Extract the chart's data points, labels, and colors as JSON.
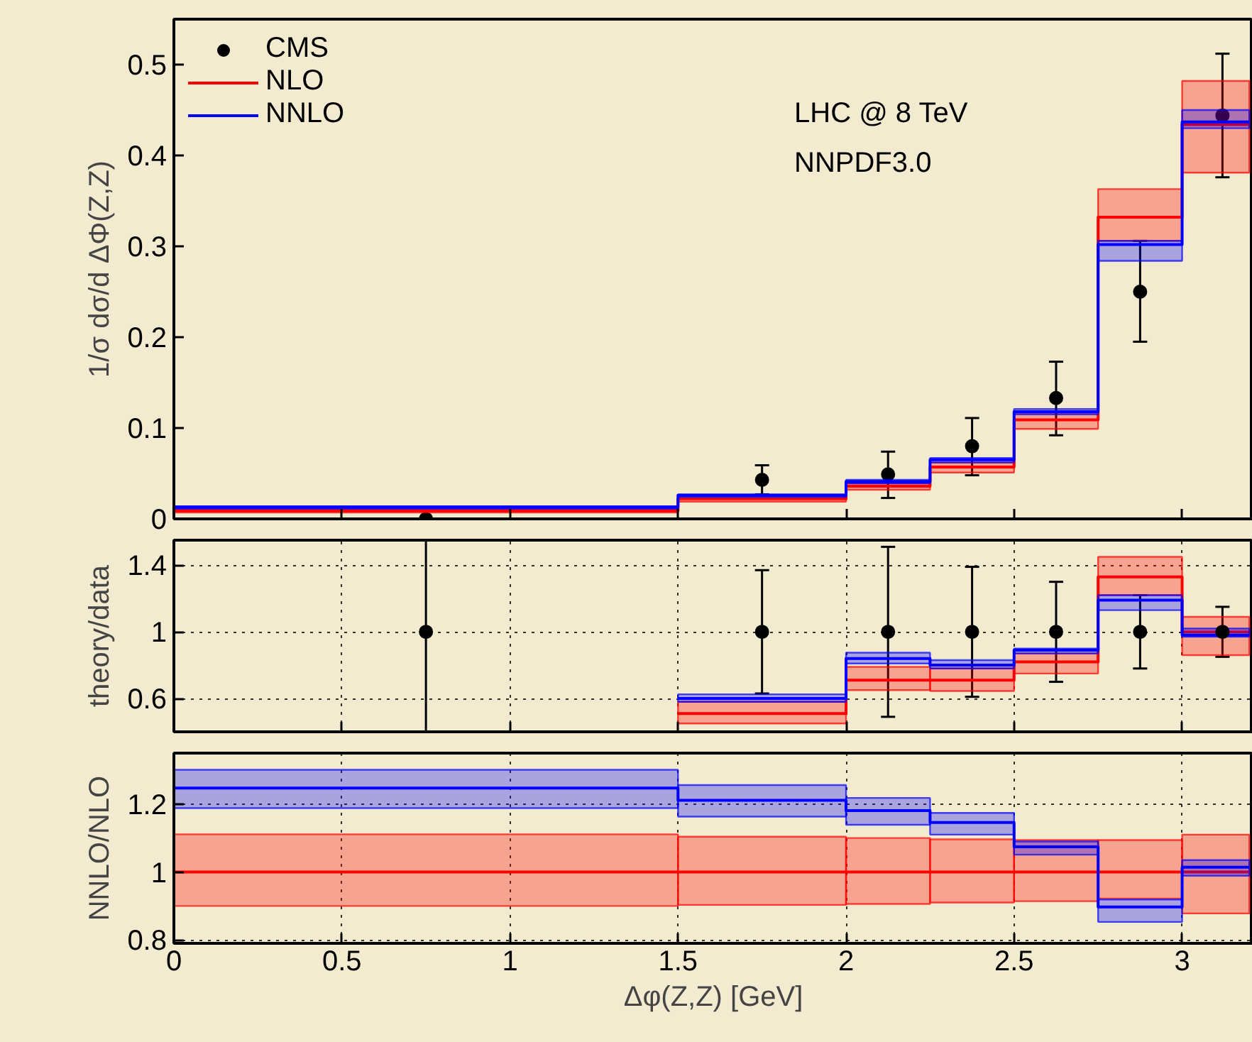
{
  "chart_data": [
    {
      "type": "step",
      "ylabel": "1/σ dσ/d ΔΦ(Z,Z)",
      "xlim": [
        0,
        3.21
      ],
      "ylim": [
        0,
        0.55
      ],
      "xticks": [
        0,
        0.5,
        1,
        1.5,
        2,
        2.5,
        3
      ],
      "yticks": [
        0,
        0.1,
        0.2,
        0.3,
        0.4,
        0.5
      ],
      "tick_labels": "y",
      "grid": false,
      "legend": "top left",
      "annotations": [
        "LHC @ 8 TeV",
        "NNPDF3.0"
      ],
      "series": [
        {
          "name": "CMS",
          "type": "scatter",
          "marker": "circle",
          "color": "#000000",
          "x": [
            0.75,
            1.75,
            2.125,
            2.375,
            2.625,
            2.875,
            3.12
          ],
          "values": [
            0,
            0.043,
            0.049,
            0.08,
            0.133,
            0.25,
            0.444
          ],
          "errors": [
            null,
            [
              0.027,
              0.059
            ],
            [
              0.023,
              0.074
            ],
            [
              0.048,
              0.111
            ],
            [
              0.092,
              0.173
            ],
            [
              0.195,
              0.306
            ],
            [
              0.376,
              0.512
            ]
          ]
        },
        {
          "name": "NLO",
          "color": "#ff0000",
          "x": [
            0,
            1.5,
            2,
            2.25,
            2.5,
            2.75,
            3,
            3.2
          ],
          "values": [
            0.009,
            0.022,
            0.036,
            0.057,
            0.109,
            0.332,
            0.434,
            0.434
          ],
          "lower": [
            0.007,
            0.019,
            0.032,
            0.051,
            0.099,
            0.306,
            0.381,
            0.381
          ],
          "upper": [
            0.011,
            0.025,
            0.039,
            0.062,
            0.117,
            0.363,
            0.482,
            0.482
          ]
        },
        {
          "name": "NNLO",
          "color": "#0000ff",
          "x": [
            0,
            1.5,
            2,
            2.25,
            2.5,
            2.75,
            3,
            3.2
          ],
          "values": [
            0.013,
            0.026,
            0.041,
            0.065,
            0.118,
            0.302,
            0.437,
            0.437
          ],
          "lower": [
            0.011,
            0.024,
            0.039,
            0.062,
            0.115,
            0.284,
            0.43,
            0.43
          ],
          "upper": [
            0.014,
            0.027,
            0.043,
            0.067,
            0.121,
            0.306,
            0.45,
            0.45
          ]
        }
      ]
    },
    {
      "type": "step",
      "ylabel": "theory/data",
      "xlim": [
        0,
        3.21
      ],
      "ylim": [
        0.4,
        1.55
      ],
      "xticks": [
        0,
        0.5,
        1,
        1.5,
        2,
        2.5,
        3
      ],
      "yticks": [
        0.6,
        1,
        1.4
      ],
      "tick_labels": "y",
      "grid": true,
      "series": [
        {
          "color": "#ff0000",
          "x": [
            1.5,
            2,
            2.25,
            2.5,
            2.75,
            3,
            3.2
          ],
          "values": [
            0.51,
            0.71,
            0.71,
            0.82,
            1.33,
            1.0,
            1.0
          ],
          "lower": [
            0.45,
            0.65,
            0.645,
            0.75,
            1.22,
            0.86,
            0.86
          ],
          "upper": [
            0.58,
            0.79,
            0.78,
            0.87,
            1.45,
            1.09,
            1.09
          ]
        },
        {
          "color": "#0000ff",
          "x": [
            1.5,
            2,
            2.25,
            2.5,
            2.75,
            3,
            3.2
          ],
          "values": [
            0.6,
            0.84,
            0.8,
            0.89,
            1.19,
            0.98,
            0.98
          ],
          "lower": [
            0.58,
            0.81,
            0.78,
            0.87,
            1.13,
            0.97,
            0.97
          ],
          "upper": [
            0.625,
            0.875,
            0.83,
            0.9,
            1.22,
            1.02,
            1.02
          ]
        },
        {
          "type": "scatter",
          "marker": "circle",
          "color": "#000000",
          "x": [
            0.75,
            1.75,
            2.125,
            2.375,
            2.625,
            2.875,
            3.12
          ],
          "values": [
            1,
            1,
            1,
            1,
            1,
            1,
            1
          ],
          "errors": [
            [
              0.4,
              1.55
            ],
            [
              0.63,
              1.37
            ],
            [
              0.49,
              1.51
            ],
            [
              0.61,
              1.39
            ],
            [
              0.7,
              1.3
            ],
            [
              0.78,
              1.22
            ],
            [
              0.85,
              1.15
            ]
          ]
        }
      ]
    },
    {
      "type": "step",
      "ylabel": "NNLO/NLO",
      "xlabel": "Δφ(Z,Z) [GeV]",
      "xlim": [
        0,
        3.21
      ],
      "ylim": [
        0.79,
        1.35
      ],
      "xticks": [
        0,
        0.5,
        1,
        1.5,
        2,
        2.5,
        3
      ],
      "yticks": [
        0.8,
        1,
        1.2
      ],
      "grid": true,
      "series": [
        {
          "color": "#ff0000",
          "x": [
            0,
            1.5,
            2,
            2.25,
            2.5,
            2.75,
            3,
            3.2
          ],
          "values": [
            1,
            1,
            1,
            1,
            1,
            1,
            1,
            1
          ],
          "lower": [
            0.9,
            0.903,
            0.906,
            0.91,
            0.914,
            0.922,
            0.878,
            0.878
          ],
          "upper": [
            1.111,
            1.104,
            1.1,
            1.096,
            1.094,
            1.094,
            1.11,
            1.11
          ]
        },
        {
          "color": "#0000ff",
          "x": [
            0,
            1.5,
            2,
            2.25,
            2.5,
            2.75,
            3,
            3.2
          ],
          "values": [
            1.247,
            1.211,
            1.181,
            1.146,
            1.074,
            0.897,
            1.014,
            1.014
          ],
          "lower": [
            1.188,
            1.163,
            1.139,
            1.11,
            1.051,
            0.853,
            0.989,
            0.989
          ],
          "upper": [
            1.301,
            1.256,
            1.218,
            1.174,
            1.09,
            0.919,
            1.035,
            1.035
          ]
        }
      ]
    }
  ]
}
